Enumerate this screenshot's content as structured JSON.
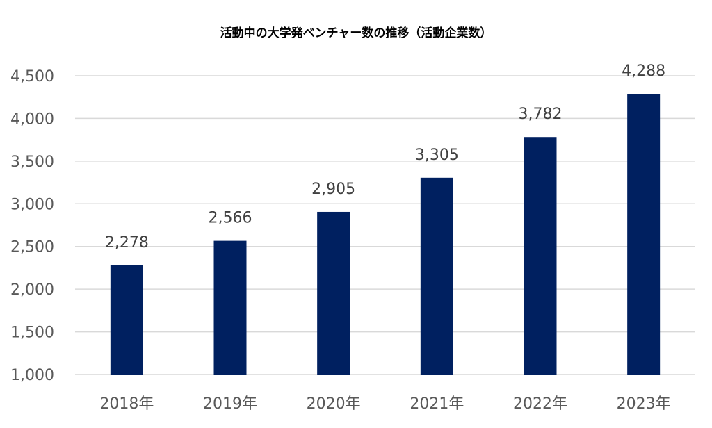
{
  "chart_data": {
    "type": "bar",
    "title": "活動中の大学発ベンチャー数の推移（活動企業数）",
    "categories": [
      "2018年",
      "2019年",
      "2020年",
      "2021年",
      "2022年",
      "2023年"
    ],
    "values": [
      2278,
      2566,
      2905,
      3305,
      3782,
      4288
    ],
    "data_labels": [
      "2,278",
      "2,566",
      "2,905",
      "3,305",
      "3,782",
      "4,288"
    ],
    "y_ticks": [
      1000,
      1500,
      2000,
      2500,
      3000,
      3500,
      4000,
      4500
    ],
    "y_tick_labels": [
      "1,000",
      "1,500",
      "2,000",
      "2,500",
      "3,000",
      "3,500",
      "4,000",
      "4,500"
    ],
    "ylim": [
      1000,
      4500
    ],
    "xlabel": "",
    "ylabel": "",
    "grid": true,
    "legend": "none",
    "colors": {
      "bar": "#002060",
      "grid": "#d9d9d9",
      "tick_text": "#595959",
      "label_text": "#404040"
    }
  }
}
